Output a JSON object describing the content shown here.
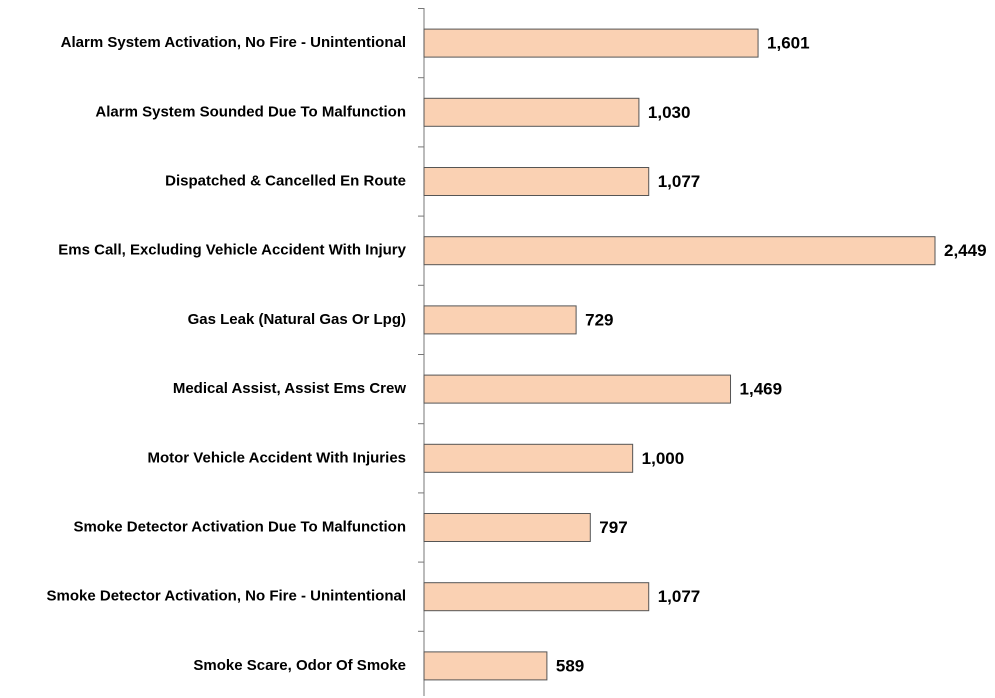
{
  "chart_data": {
    "type": "bar",
    "orientation": "horizontal",
    "categories": [
      "Alarm System Activation, No Fire - Unintentional",
      "Alarm System Sounded Due To Malfunction",
      "Dispatched & Cancelled En Route",
      "Ems Call, Excluding Vehicle Accident With Injury",
      "Gas Leak (Natural Gas Or Lpg)",
      "Medical Assist, Assist Ems Crew",
      "Motor Vehicle Accident With Injuries",
      "Smoke Detector Activation Due To Malfunction",
      "Smoke Detector Activation, No Fire - Unintentional",
      "Smoke Scare, Odor Of Smoke"
    ],
    "values": [
      1601,
      1030,
      1077,
      2449,
      729,
      1469,
      1000,
      797,
      1077,
      589
    ],
    "value_labels": [
      "1,601",
      "1,030",
      "1,077",
      "2,449",
      "729",
      "1,469",
      "1,000",
      "797",
      "1,077",
      "589"
    ],
    "color": "#fad1b3"
  }
}
